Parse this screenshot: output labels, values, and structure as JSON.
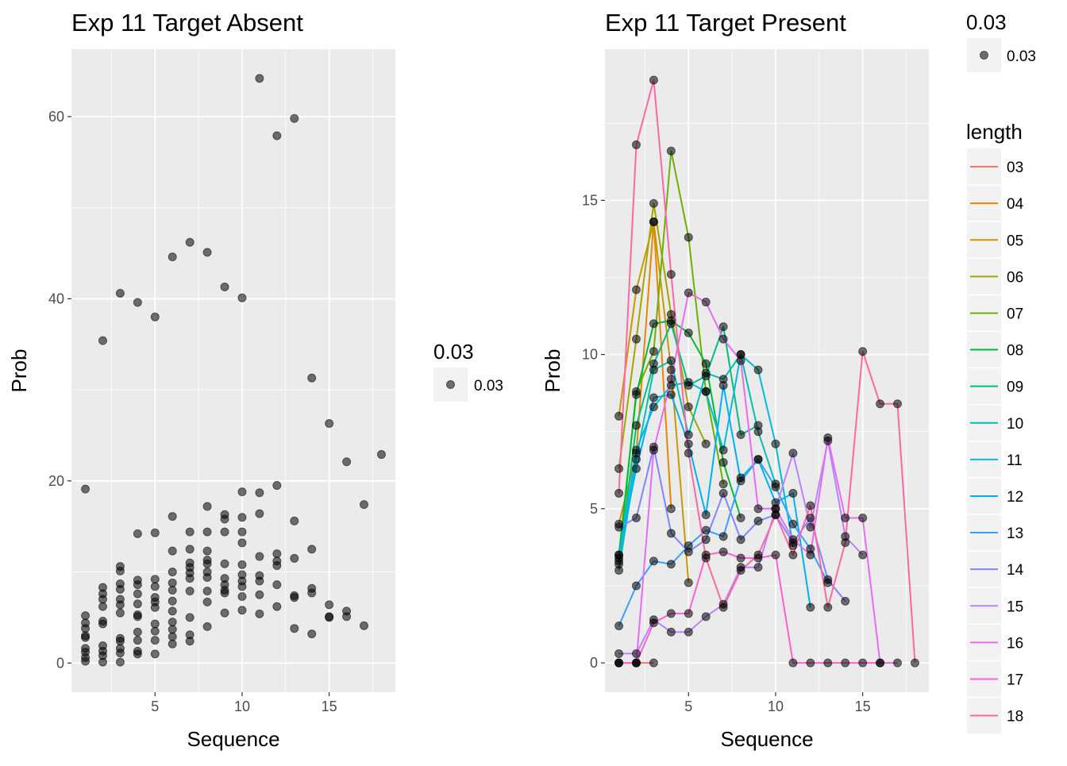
{
  "chart_data": [
    {
      "type": "scatter",
      "title": "Exp 11 Target Absent",
      "xlabel": "Sequence",
      "ylabel": "Prob",
      "xlim": [
        0.2,
        18.8
      ],
      "ylim": [
        -3.2,
        67.4
      ],
      "xticks": [
        5,
        10,
        15
      ],
      "yticks": [
        0,
        20,
        40,
        60
      ],
      "grid": true,
      "legend": {
        "title": "0.03",
        "entries": [
          "0.03"
        ],
        "placement": "right"
      },
      "point_color": "#000000",
      "points": [
        [
          1,
          19.1
        ],
        [
          1,
          5.2
        ],
        [
          1,
          4.4
        ],
        [
          1,
          3.8
        ],
        [
          1,
          3.0
        ],
        [
          1,
          2.8
        ],
        [
          1,
          1.6
        ],
        [
          1,
          1.2
        ],
        [
          1,
          0.6
        ],
        [
          1,
          0.2
        ],
        [
          2,
          35.4
        ],
        [
          2,
          8.3
        ],
        [
          2,
          7.6
        ],
        [
          2,
          7.0
        ],
        [
          2,
          6.2
        ],
        [
          2,
          4.6
        ],
        [
          2,
          4.3
        ],
        [
          2,
          1.9
        ],
        [
          2,
          1.3
        ],
        [
          2,
          0.8
        ],
        [
          2,
          0.1
        ],
        [
          3,
          40.6
        ],
        [
          3,
          10.6
        ],
        [
          3,
          10.1
        ],
        [
          3,
          8.7
        ],
        [
          3,
          8.1
        ],
        [
          3,
          7.0
        ],
        [
          3,
          6.4
        ],
        [
          3,
          5.5
        ],
        [
          3,
          2.7
        ],
        [
          3,
          2.4
        ],
        [
          3,
          1.6
        ],
        [
          3,
          1.1
        ],
        [
          3,
          0.1
        ],
        [
          4,
          39.6
        ],
        [
          4,
          14.2
        ],
        [
          4,
          9.1
        ],
        [
          4,
          8.6
        ],
        [
          4,
          7.6
        ],
        [
          4,
          6.5
        ],
        [
          4,
          5.3
        ],
        [
          4,
          5.1
        ],
        [
          4,
          3.4
        ],
        [
          4,
          2.5
        ],
        [
          4,
          1.3
        ],
        [
          4,
          1.0
        ],
        [
          5,
          38.0
        ],
        [
          5,
          14.3
        ],
        [
          5,
          9.2
        ],
        [
          5,
          8.4
        ],
        [
          5,
          7.2
        ],
        [
          5,
          6.7
        ],
        [
          5,
          6.1
        ],
        [
          5,
          4.3
        ],
        [
          5,
          3.5
        ],
        [
          5,
          2.5
        ],
        [
          5,
          1.0
        ],
        [
          6,
          44.6
        ],
        [
          6,
          16.1
        ],
        [
          6,
          12.3
        ],
        [
          6,
          10.0
        ],
        [
          6,
          8.8
        ],
        [
          6,
          8.0
        ],
        [
          6,
          6.8
        ],
        [
          6,
          5.7
        ],
        [
          6,
          4.5
        ],
        [
          6,
          3.7
        ],
        [
          6,
          2.9
        ],
        [
          6,
          2.1
        ],
        [
          7,
          46.2
        ],
        [
          7,
          14.4
        ],
        [
          7,
          12.5
        ],
        [
          7,
          11.0
        ],
        [
          7,
          10.5
        ],
        [
          7,
          9.9
        ],
        [
          7,
          9.3
        ],
        [
          7,
          7.9
        ],
        [
          7,
          5.0
        ],
        [
          7,
          3.1
        ],
        [
          7,
          2.4
        ],
        [
          8,
          45.1
        ],
        [
          8,
          17.2
        ],
        [
          8,
          14.4
        ],
        [
          8,
          12.3
        ],
        [
          8,
          11.3
        ],
        [
          8,
          10.9
        ],
        [
          8,
          10.0
        ],
        [
          8,
          9.4
        ],
        [
          8,
          7.9
        ],
        [
          8,
          6.7
        ],
        [
          8,
          4.0
        ],
        [
          9,
          41.3
        ],
        [
          9,
          16.3
        ],
        [
          9,
          15.8
        ],
        [
          9,
          14.4
        ],
        [
          9,
          10.9
        ],
        [
          9,
          9.3
        ],
        [
          9,
          8.6
        ],
        [
          9,
          8.0
        ],
        [
          9,
          7.7
        ],
        [
          9,
          5.5
        ],
        [
          10,
          40.1
        ],
        [
          10,
          18.8
        ],
        [
          10,
          16.0
        ],
        [
          10,
          14.4
        ],
        [
          10,
          13.2
        ],
        [
          10,
          10.8
        ],
        [
          10,
          9.7
        ],
        [
          10,
          9.0
        ],
        [
          10,
          8.4
        ],
        [
          10,
          7.3
        ],
        [
          10,
          5.8
        ],
        [
          11,
          64.2
        ],
        [
          11,
          18.7
        ],
        [
          11,
          16.4
        ],
        [
          11,
          11.7
        ],
        [
          11,
          9.6
        ],
        [
          11,
          9.0
        ],
        [
          11,
          7.5
        ],
        [
          11,
          5.4
        ],
        [
          12,
          57.9
        ],
        [
          12,
          19.5
        ],
        [
          12,
          12.0
        ],
        [
          12,
          11.2
        ],
        [
          12,
          10.7
        ],
        [
          12,
          8.6
        ],
        [
          12,
          6.2
        ],
        [
          13,
          59.8
        ],
        [
          13,
          15.6
        ],
        [
          13,
          11.5
        ],
        [
          13,
          7.4
        ],
        [
          13,
          7.2
        ],
        [
          13,
          3.8
        ],
        [
          14,
          31.3
        ],
        [
          14,
          12.5
        ],
        [
          14,
          8.2
        ],
        [
          14,
          7.7
        ],
        [
          14,
          3.2
        ],
        [
          15,
          26.3
        ],
        [
          15,
          6.4
        ],
        [
          15,
          5.1
        ],
        [
          15,
          5.0
        ],
        [
          16,
          22.1
        ],
        [
          16,
          5.7
        ],
        [
          16,
          5.1
        ],
        [
          17,
          17.4
        ],
        [
          17,
          4.1
        ],
        [
          18,
          22.9
        ]
      ]
    },
    {
      "type": "line",
      "title": "Exp 11 Target Present",
      "xlabel": "Sequence",
      "ylabel": "Prob",
      "xlim": [
        0.2,
        18.8
      ],
      "ylim": [
        -0.95,
        19.9
      ],
      "xticks": [
        5,
        10,
        15
      ],
      "yticks": [
        0,
        5,
        10,
        15
      ],
      "grid": true,
      "legend_point": {
        "title": "0.03",
        "entries": [
          "0.03"
        ],
        "placement": "top-right"
      },
      "legend_color": {
        "title": "length",
        "placement": "right"
      },
      "point_color": "#000000",
      "series": [
        {
          "name": "03",
          "color": "#F8766D",
          "x": [
            1,
            2,
            3
          ],
          "y": [
            0,
            0,
            0
          ]
        },
        {
          "name": "04",
          "color": "#E58700",
          "x": [
            1,
            2,
            3,
            4
          ],
          "y": [
            4.5,
            6.8,
            14.3,
            5.0
          ]
        },
        {
          "name": "05",
          "color": "#C99800",
          "x": [
            1,
            2,
            3,
            4,
            5
          ],
          "y": [
            8.0,
            12.1,
            14.3,
            9.5,
            2.6
          ]
        },
        {
          "name": "06",
          "color": "#A3A500",
          "x": [
            1,
            2,
            3,
            4,
            5,
            6
          ],
          "y": [
            6.3,
            10.5,
            14.9,
            11.3,
            8.3,
            7.1
          ]
        },
        {
          "name": "07",
          "color": "#6BB100",
          "x": [
            1,
            2,
            3,
            4,
            5,
            6,
            7
          ],
          "y": [
            3.3,
            8.8,
            10.1,
            16.6,
            13.8,
            8.8,
            5.8
          ]
        },
        {
          "name": "08",
          "color": "#00BA38",
          "x": [
            1,
            2,
            3,
            4,
            5,
            6,
            7,
            8
          ],
          "y": [
            3.5,
            8.7,
            11.0,
            11.1,
            10.7,
            9.7,
            6.5,
            4.7
          ]
        },
        {
          "name": "09",
          "color": "#00BF7D",
          "x": [
            1,
            2,
            3,
            4,
            5,
            6,
            7,
            8,
            9
          ],
          "y": [
            3.2,
            7.7,
            9.7,
            11.0,
            9.0,
            9.3,
            10.9,
            7.4,
            7.7
          ]
        },
        {
          "name": "10",
          "color": "#00C0AF",
          "x": [
            1,
            2,
            3,
            4,
            5,
            6,
            7,
            8,
            9,
            10
          ],
          "y": [
            3.0,
            6.6,
            9.5,
            9.8,
            7.4,
            9.4,
            9.2,
            10.0,
            7.5,
            5.8
          ]
        },
        {
          "name": "11",
          "color": "#00BCD8",
          "x": [
            1,
            2,
            3,
            4,
            5,
            6,
            7,
            8,
            9,
            10,
            11
          ],
          "y": [
            3.4,
            6.9,
            8.3,
            9.0,
            9.1,
            8.8,
            6.9,
            10.0,
            9.5,
            7.1,
            3.8
          ]
        },
        {
          "name": "12",
          "color": "#00B0F6",
          "x": [
            1,
            2,
            3,
            4,
            5,
            6,
            7,
            8,
            9,
            10,
            11,
            12
          ],
          "y": [
            3.5,
            6.3,
            8.6,
            8.7,
            7.1,
            4.8,
            9.0,
            5.9,
            6.6,
            5.2,
            5.5,
            1.8
          ]
        },
        {
          "name": "13",
          "color": "#35A2FF",
          "x": [
            1,
            2,
            3,
            4,
            5,
            6,
            7,
            8,
            9,
            10,
            11,
            12,
            13
          ],
          "y": [
            1.2,
            2.5,
            3.3,
            3.2,
            3.8,
            4.3,
            4.1,
            6.0,
            6.6,
            5.7,
            4.5,
            3.7,
            2.6
          ]
        },
        {
          "name": "14",
          "color": "#7F86FF",
          "x": [
            1,
            2,
            3,
            4,
            5,
            6,
            7,
            8,
            9,
            10,
            11,
            12,
            13,
            14
          ],
          "y": [
            4.4,
            4.7,
            7.0,
            4.2,
            3.6,
            4.0,
            5.5,
            4.0,
            4.6,
            4.8,
            3.9,
            4.7,
            2.7,
            2.0
          ]
        },
        {
          "name": "15",
          "color": "#B983FF",
          "x": [
            1,
            2,
            3,
            4,
            5,
            6,
            7,
            8,
            9,
            10,
            11,
            12,
            13,
            14,
            15
          ],
          "y": [
            0.3,
            0.3,
            1.4,
            1.0,
            1.0,
            1.5,
            1.9,
            3.1,
            3.1,
            5.0,
            6.8,
            4.4,
            7.2,
            4.1,
            3.5
          ]
        },
        {
          "name": "16",
          "color": "#E76BF3",
          "x": [
            1,
            2,
            3,
            4,
            5,
            6,
            7,
            8,
            9,
            10,
            11,
            12,
            13,
            14,
            15,
            16
          ],
          "y": [
            0,
            0,
            6.9,
            9.2,
            12.0,
            11.7,
            10.5,
            9.8,
            5.0,
            5.0,
            4.0,
            3.5,
            7.3,
            4.7,
            4.7,
            0
          ]
        },
        {
          "name": "17",
          "color": "#FD61D1",
          "x": [
            1,
            2,
            3,
            4,
            5,
            6,
            7,
            8,
            9,
            10,
            11,
            12,
            13,
            14,
            15,
            16,
            17
          ],
          "y": [
            0,
            0,
            1.3,
            1.6,
            1.6,
            3.5,
            3.6,
            3.4,
            3.4,
            3.5,
            0,
            0,
            0,
            0,
            0,
            0,
            0
          ]
        },
        {
          "name": "18",
          "color": "#FF67A4",
          "x": [
            1,
            2,
            3,
            4,
            5,
            6,
            7,
            8,
            9,
            10,
            11,
            12,
            13,
            14,
            15,
            16,
            17,
            18
          ],
          "y": [
            5.5,
            16.8,
            18.9,
            12.6,
            6.8,
            3.4,
            1.8,
            3.0,
            3.5,
            4.8,
            3.5,
            5.1,
            1.8,
            3.9,
            10.1,
            8.4,
            8.4,
            0
          ]
        }
      ]
    }
  ]
}
